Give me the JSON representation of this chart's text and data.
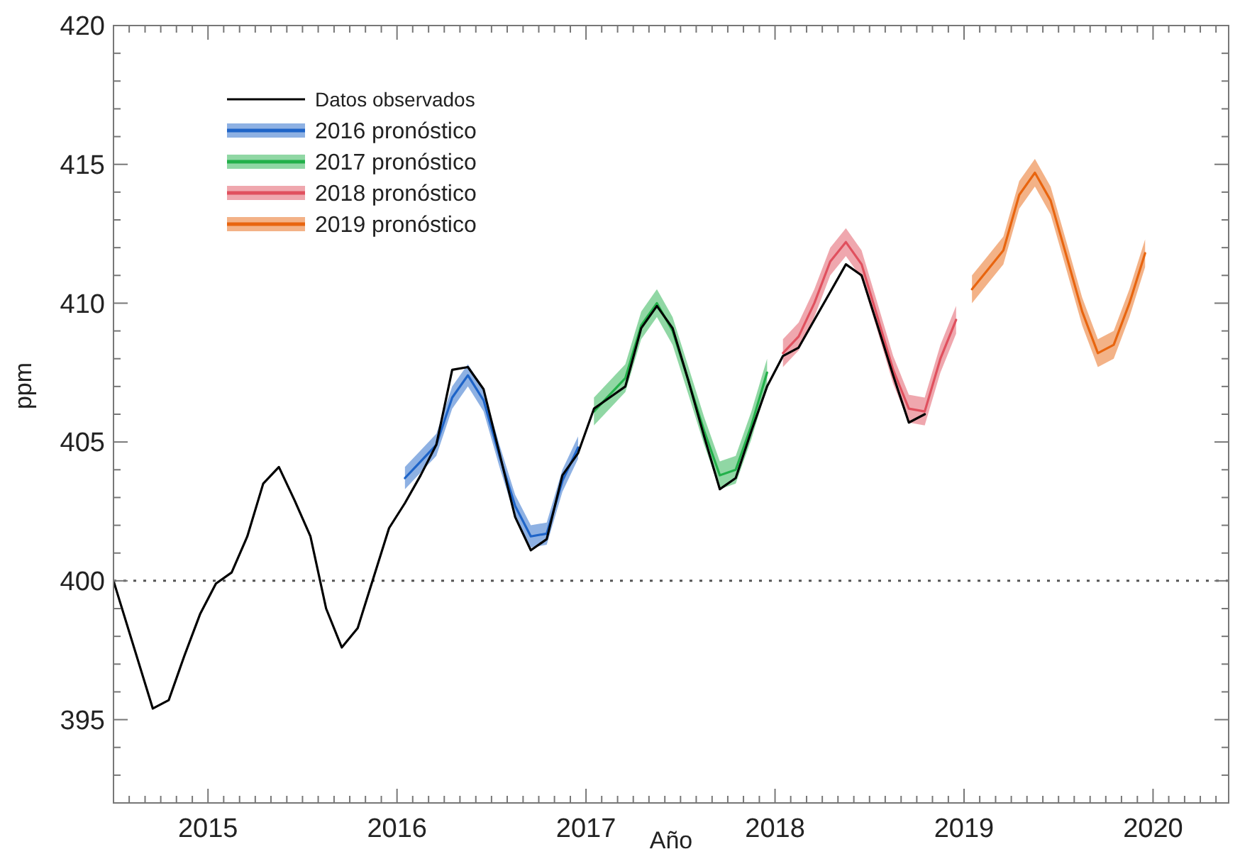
{
  "chart_data": {
    "type": "line",
    "xlabel": "Año",
    "ylabel": "ppm",
    "xlim": [
      2014.5,
      2020.4
    ],
    "ylim": [
      392,
      420
    ],
    "xticks": [
      {
        "value": 2014.583,
        "label": null
      },
      {
        "value": 2014.667,
        "label": null
      },
      {
        "value": 2014.75,
        "label": null
      },
      {
        "value": 2014.833,
        "label": null
      },
      {
        "value": 2014.917,
        "label": null
      },
      2015,
      {
        "value": 2015.083,
        "label": null
      },
      {
        "value": 2015.167,
        "label": null
      },
      {
        "value": 2015.25,
        "label": null
      },
      {
        "value": 2015.333,
        "label": null
      },
      {
        "value": 2015.417,
        "label": null
      },
      {
        "value": 2015.5,
        "label": null
      },
      {
        "value": 2015.583,
        "label": null
      },
      {
        "value": 2015.667,
        "label": null
      },
      {
        "value": 2015.75,
        "label": null
      },
      {
        "value": 2015.833,
        "label": null
      },
      {
        "value": 2015.917,
        "label": null
      },
      2016,
      {
        "value": 2016.083,
        "label": null
      },
      {
        "value": 2016.167,
        "label": null
      },
      {
        "value": 2016.25,
        "label": null
      },
      {
        "value": 2016.333,
        "label": null
      },
      {
        "value": 2016.417,
        "label": null
      },
      {
        "value": 2016.5,
        "label": null
      },
      {
        "value": 2016.583,
        "label": null
      },
      {
        "value": 2016.667,
        "label": null
      },
      {
        "value": 2016.75,
        "label": null
      },
      {
        "value": 2016.833,
        "label": null
      },
      {
        "value": 2016.917,
        "label": null
      },
      2017,
      {
        "value": 2017.083,
        "label": null
      },
      {
        "value": 2017.167,
        "label": null
      },
      {
        "value": 2017.25,
        "label": null
      },
      {
        "value": 2017.333,
        "label": null
      },
      {
        "value": 2017.417,
        "label": null
      },
      {
        "value": 2017.5,
        "label": null
      },
      {
        "value": 2017.583,
        "label": null
      },
      {
        "value": 2017.667,
        "label": null
      },
      {
        "value": 2017.75,
        "label": null
      },
      {
        "value": 2017.833,
        "label": null
      },
      {
        "value": 2017.917,
        "label": null
      },
      2018,
      {
        "value": 2018.083,
        "label": null
      },
      {
        "value": 2018.167,
        "label": null
      },
      {
        "value": 2018.25,
        "label": null
      },
      {
        "value": 2018.333,
        "label": null
      },
      {
        "value": 2018.417,
        "label": null
      },
      {
        "value": 2018.5,
        "label": null
      },
      {
        "value": 2018.583,
        "label": null
      },
      {
        "value": 2018.667,
        "label": null
      },
      {
        "value": 2018.75,
        "label": null
      },
      {
        "value": 2018.833,
        "label": null
      },
      {
        "value": 2018.917,
        "label": null
      },
      2019,
      {
        "value": 2019.083,
        "label": null
      },
      {
        "value": 2019.167,
        "label": null
      },
      {
        "value": 2019.25,
        "label": null
      },
      {
        "value": 2019.333,
        "label": null
      },
      {
        "value": 2019.417,
        "label": null
      },
      {
        "value": 2019.5,
        "label": null
      },
      {
        "value": 2019.583,
        "label": null
      },
      {
        "value": 2019.667,
        "label": null
      },
      {
        "value": 2019.75,
        "label": null
      },
      {
        "value": 2019.833,
        "label": null
      },
      {
        "value": 2019.917,
        "label": null
      },
      2020,
      {
        "value": 2020.083,
        "label": null
      },
      {
        "value": 2020.167,
        "label": null
      },
      {
        "value": 2020.25,
        "label": null
      },
      {
        "value": 2020.333,
        "label": null
      }
    ],
    "yticks": [
      {
        "value": 392,
        "label": null
      },
      {
        "value": 393,
        "label": null
      },
      {
        "value": 394,
        "label": null
      },
      395,
      {
        "value": 396,
        "label": null
      },
      {
        "value": 397,
        "label": null
      },
      {
        "value": 398,
        "label": null
      },
      {
        "value": 399,
        "label": null
      },
      400,
      {
        "value": 401,
        "label": null
      },
      {
        "value": 402,
        "label": null
      },
      {
        "value": 403,
        "label": null
      },
      {
        "value": 404,
        "label": null
      },
      405,
      {
        "value": 406,
        "label": null
      },
      {
        "value": 407,
        "label": null
      },
      {
        "value": 408,
        "label": null
      },
      {
        "value": 409,
        "label": null
      },
      410,
      {
        "value": 411,
        "label": null
      },
      {
        "value": 412,
        "label": null
      },
      {
        "value": 413,
        "label": null
      },
      {
        "value": 414,
        "label": null
      },
      415,
      {
        "value": 416,
        "label": null
      },
      {
        "value": 417,
        "label": null
      },
      {
        "value": 418,
        "label": null
      },
      {
        "value": 419,
        "label": null
      },
      420
    ],
    "legend": "top left",
    "ref_lines": [
      {
        "axis": "y",
        "value": 400,
        "color": "#555555",
        "line_style": "dotted"
      }
    ],
    "series": [
      {
        "name": "Datos observados",
        "color": "#000000",
        "x": [
          2014.5,
          2014.708,
          2014.792,
          2014.875,
          2014.958,
          2015.042,
          2015.125,
          2015.208,
          2015.292,
          2015.375,
          2015.458,
          2015.542,
          2015.625,
          2015.708,
          2015.792,
          2015.875,
          2015.958,
          2016.042,
          2016.125,
          2016.208,
          2016.292,
          2016.375,
          2016.458,
          2016.542,
          2016.625,
          2016.708,
          2016.792,
          2016.875,
          2016.958,
          2017.042,
          2017.125,
          2017.208,
          2017.292,
          2017.375,
          2017.458,
          2017.542,
          2017.625,
          2017.708,
          2017.792,
          2017.875,
          2017.958,
          2018.042,
          2018.125,
          2018.208,
          2018.292,
          2018.375,
          2018.458,
          2018.542,
          2018.625,
          2018.708,
          2018.792
        ],
        "values": [
          400.0,
          395.4,
          395.7,
          397.3,
          398.8,
          399.9,
          400.3,
          401.6,
          403.5,
          404.1,
          402.9,
          401.6,
          399.0,
          397.6,
          398.3,
          400.1,
          401.9,
          402.8,
          403.8,
          404.9,
          407.6,
          407.7,
          406.9,
          404.6,
          402.3,
          401.1,
          401.5,
          403.8,
          404.6,
          406.2,
          406.6,
          407.0,
          409.1,
          409.9,
          409.1,
          407.2,
          405.2,
          403.3,
          403.7,
          405.4,
          407.0,
          408.1,
          408.4,
          409.4,
          410.4,
          411.4,
          411.0,
          409.2,
          407.4,
          405.7,
          406.0
        ]
      },
      {
        "name": "2016 pronóstico",
        "color": "#1e64c8",
        "x": [
          2016.042,
          2016.125,
          2016.208,
          2016.292,
          2016.375,
          2016.458,
          2016.542,
          2016.625,
          2016.708,
          2016.792,
          2016.875,
          2016.958
        ],
        "values": [
          403.7,
          404.3,
          404.9,
          406.6,
          407.4,
          406.5,
          404.5,
          402.7,
          401.6,
          401.7,
          403.6,
          404.8
        ],
        "lower": [
          403.3,
          403.9,
          404.5,
          406.2,
          407.0,
          406.1,
          404.1,
          402.3,
          401.2,
          401.3,
          403.2,
          404.4
        ],
        "upper": [
          404.1,
          404.7,
          405.3,
          407.0,
          407.8,
          406.9,
          404.9,
          403.1,
          402.0,
          402.1,
          404.0,
          405.2
        ]
      },
      {
        "name": "2017 pronóstico",
        "color": "#22b04a",
        "x": [
          2017.042,
          2017.125,
          2017.208,
          2017.292,
          2017.375,
          2017.458,
          2017.542,
          2017.625,
          2017.708,
          2017.792,
          2017.875,
          2017.958
        ],
        "values": [
          406.1,
          406.7,
          407.3,
          409.2,
          410.0,
          409.0,
          407.2,
          405.4,
          403.8,
          404.0,
          405.6,
          407.5
        ],
        "lower": [
          405.6,
          406.2,
          406.8,
          408.7,
          409.5,
          408.5,
          406.7,
          404.9,
          403.3,
          403.5,
          405.1,
          407.0
        ],
        "upper": [
          406.6,
          407.2,
          407.8,
          409.7,
          410.5,
          409.5,
          407.7,
          405.9,
          404.3,
          404.5,
          406.1,
          408.0
        ]
      },
      {
        "name": "2018 pronóstico",
        "color": "#e0505e",
        "x": [
          2018.042,
          2018.125,
          2018.208,
          2018.292,
          2018.375,
          2018.458,
          2018.542,
          2018.625,
          2018.708,
          2018.792,
          2018.875,
          2018.958
        ],
        "values": [
          408.2,
          408.8,
          410.0,
          411.5,
          412.2,
          411.4,
          409.5,
          407.6,
          406.2,
          406.1,
          408.0,
          409.4
        ],
        "lower": [
          407.7,
          408.3,
          409.5,
          411.0,
          411.7,
          410.9,
          409.0,
          407.1,
          405.7,
          405.6,
          407.5,
          408.9
        ],
        "upper": [
          408.7,
          409.3,
          410.5,
          412.0,
          412.7,
          411.9,
          410.0,
          408.1,
          406.7,
          406.6,
          408.5,
          409.9
        ]
      },
      {
        "name": "2019 pronóstico",
        "color": "#e8650f",
        "x": [
          2019.042,
          2019.125,
          2019.208,
          2019.292,
          2019.375,
          2019.458,
          2019.542,
          2019.625,
          2019.708,
          2019.792,
          2019.875,
          2019.958
        ],
        "values": [
          410.5,
          411.2,
          411.9,
          413.9,
          414.7,
          413.7,
          411.7,
          409.7,
          408.2,
          408.5,
          410.0,
          411.8
        ],
        "lower": [
          410.0,
          410.7,
          411.4,
          413.4,
          414.2,
          413.2,
          411.2,
          409.2,
          407.7,
          408.0,
          409.5,
          411.3
        ],
        "upper": [
          411.0,
          411.7,
          412.4,
          414.4,
          415.2,
          414.2,
          412.2,
          410.2,
          408.7,
          409.0,
          410.5,
          412.3
        ]
      }
    ]
  }
}
